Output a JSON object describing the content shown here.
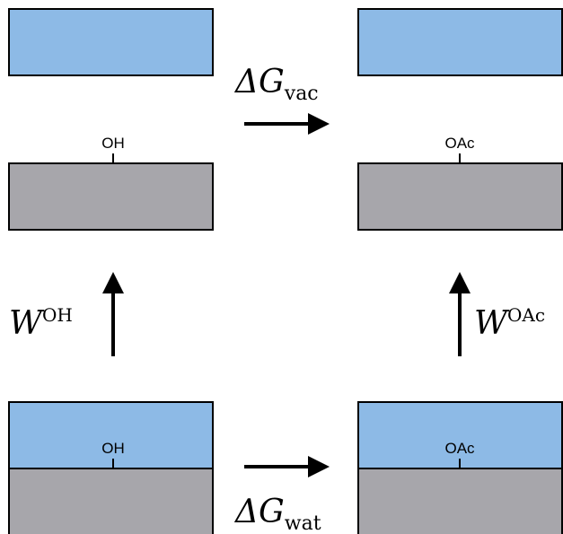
{
  "colors": {
    "water": "#8dbae6",
    "surface": "#a7a6ab",
    "outline": "#000000",
    "arrow": "#000000"
  },
  "panels": {
    "top_left": {
      "group": "OH"
    },
    "top_right": {
      "group": "OAc"
    },
    "bottom_left": {
      "group": "OH"
    },
    "bottom_right": {
      "group": "OAc"
    }
  },
  "arrows": {
    "top": {
      "symbol": "ΔG",
      "subscript": "vac"
    },
    "bottom": {
      "symbol": "ΔG",
      "subscript": "wat"
    },
    "left": {
      "symbol": "W",
      "superscript": "OH"
    },
    "right": {
      "symbol": "W",
      "superscript": "OAc"
    }
  }
}
